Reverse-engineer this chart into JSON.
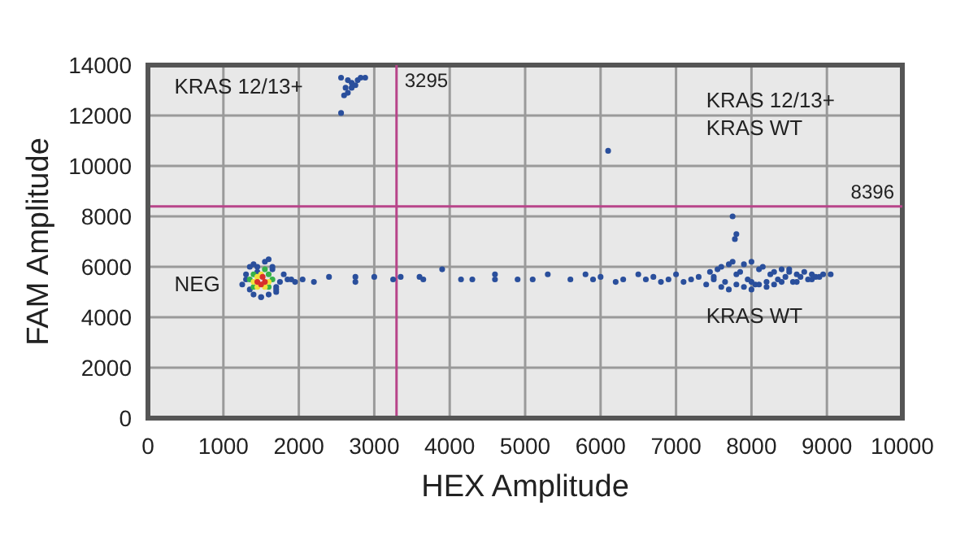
{
  "chart_data": {
    "type": "scatter",
    "xlabel": "HEX Amplitude",
    "ylabel": "FAM Amplitude",
    "xlim": [
      0,
      10000
    ],
    "ylim": [
      0,
      14000
    ],
    "xticks": [
      0,
      1000,
      2000,
      3000,
      4000,
      5000,
      6000,
      7000,
      8000,
      9000,
      10000
    ],
    "yticks": [
      0,
      2000,
      4000,
      6000,
      8000,
      10000,
      12000,
      14000
    ],
    "grid": true,
    "marker": "circle",
    "annotations": [
      "KRAS 12/13+",
      "NEG",
      "KRAS 12/13+\nKRAS WT",
      "KRAS WT"
    ],
    "ref_lines": [
      {
        "axis": "x",
        "value": 3295,
        "label": "3295",
        "color": "#b8458a"
      },
      {
        "axis": "y",
        "value": 8396,
        "label": "8396",
        "color": "#b8458a"
      }
    ],
    "series": [
      {
        "color": "#2a4f9c",
        "x": [
          2560,
          2600,
          2650,
          2560,
          2650,
          2700,
          2750,
          2780,
          2820,
          2880,
          2700,
          2620,
          6100,
          7750,
          7800,
          7780,
          1800,
          1850,
          1900,
          1950,
          2050,
          2200,
          2400,
          2750,
          2750,
          3000,
          3250,
          3350,
          3600,
          3650,
          3900,
          4150,
          4300,
          4600,
          4600,
          4900,
          5100,
          5300,
          5600,
          5800,
          5900,
          6000,
          6200,
          6300,
          6500,
          6600,
          6700,
          6800,
          6900,
          7000,
          7100,
          7200,
          7300,
          7400,
          7450,
          7500,
          7550,
          7600,
          7650,
          7700,
          7750,
          7800,
          7850,
          7900,
          7950,
          8000,
          8050,
          8100,
          8150,
          8200,
          8250,
          8300,
          8350,
          8400,
          8450,
          8500,
          8550,
          8600,
          8650,
          8700,
          8750,
          8800,
          8850,
          8900,
          8950,
          9050,
          7600,
          7700,
          7900,
          8000,
          8100,
          8200,
          8300,
          8400,
          8600,
          8800,
          7500,
          7800,
          8000,
          8500,
          1250,
          1300,
          1350,
          1400,
          1450,
          1500,
          1550,
          1600,
          1650,
          1700,
          1750,
          1300,
          1400,
          1500,
          1600,
          1700,
          1350,
          1450,
          1650,
          1700
        ],
        "values": [
          12100,
          12800,
          12900,
          13500,
          13400,
          13100,
          13200,
          13400,
          13500,
          13500,
          13300,
          13100,
          10600,
          8000,
          7300,
          7100,
          5700,
          5500,
          5500,
          5400,
          5500,
          5400,
          5600,
          5400,
          5600,
          5600,
          5500,
          5600,
          5600,
          5500,
          5900,
          5500,
          5500,
          5700,
          5500,
          5500,
          5500,
          5700,
          5500,
          5700,
          5500,
          5600,
          5400,
          5500,
          5700,
          5500,
          5600,
          5400,
          5500,
          5700,
          5400,
          5500,
          5600,
          5300,
          5800,
          5500,
          5900,
          6000,
          5400,
          6100,
          6200,
          5300,
          5800,
          6100,
          5500,
          6200,
          5300,
          5900,
          6000,
          5400,
          5700,
          5800,
          5500,
          5900,
          5600,
          5800,
          5400,
          5700,
          5600,
          5800,
          5500,
          5700,
          5600,
          5600,
          5700,
          5700,
          5200,
          5100,
          5200,
          5100,
          5300,
          5200,
          5300,
          5400,
          5400,
          5500,
          5600,
          5700,
          5400,
          5900,
          5300,
          5500,
          5100,
          4900,
          6000,
          4800,
          6200,
          4900,
          6000,
          5200,
          5400,
          5700,
          6100,
          4800,
          6300,
          5000,
          6000,
          5800,
          5900,
          5100
        ]
      },
      {
        "color": "#35b24a",
        "x": [
          1350,
          1400,
          1550,
          1600,
          1650,
          1400,
          1600
        ],
        "values": [
          5500,
          5200,
          5900,
          5200,
          5500,
          5700,
          5700
        ]
      },
      {
        "color": "#f1e03a",
        "x": [
          1400,
          1450,
          1500,
          1600,
          1450,
          1550
        ],
        "values": [
          5400,
          5600,
          5700,
          5400,
          5200,
          5200
        ]
      },
      {
        "color": "#d82f2a",
        "x": [
          1450,
          1550,
          1500,
          1520
        ],
        "values": [
          5400,
          5400,
          5300,
          5600
        ]
      }
    ]
  }
}
